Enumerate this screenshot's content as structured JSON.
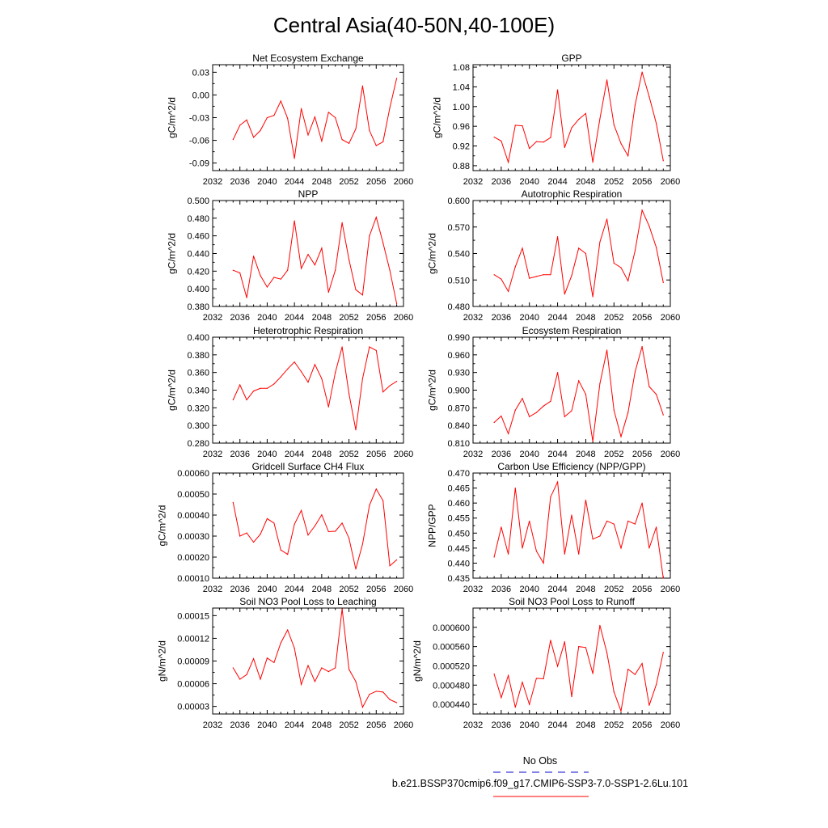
{
  "figure": {
    "title": "Central Asia(40-50N,40-100E)",
    "line_color": "#ff0000",
    "obs_color": "#3b3bd6"
  },
  "legend": {
    "obs_label": "No Obs",
    "run_label": "b.e21.BSSP370cmip6.f09_g17.CMIP6-SSP3-7.0-SSP1-2.6Lu.101"
  },
  "chart_data": [
    {
      "type": "line",
      "title": "Net Ecosystem Exchange",
      "ylabel": "gC/m^2/d",
      "xlim": [
        2032,
        2060
      ],
      "xticks": [
        2032,
        2036,
        2040,
        2044,
        2048,
        2052,
        2056,
        2060
      ],
      "ylim": [
        -0.1,
        0.04
      ],
      "yticks": [
        -0.09,
        -0.06,
        -0.03,
        0.0,
        0.03
      ],
      "ytick_labels": [
        "-0.09",
        "-0.06",
        "-0.03",
        "0.00",
        "0.03"
      ],
      "x": [
        2035,
        2036,
        2037,
        2038,
        2039,
        2040,
        2041,
        2042,
        2043,
        2044,
        2045,
        2046,
        2047,
        2048,
        2049,
        2050,
        2051,
        2052,
        2053,
        2054,
        2055,
        2056,
        2057,
        2058,
        2059
      ],
      "values": [
        -0.059,
        -0.04,
        -0.033,
        -0.056,
        -0.047,
        -0.03,
        -0.027,
        -0.008,
        -0.031,
        -0.084,
        -0.018,
        -0.053,
        -0.029,
        -0.061,
        -0.023,
        -0.03,
        -0.059,
        -0.064,
        -0.045,
        0.012,
        -0.047,
        -0.067,
        -0.062,
        -0.017,
        0.022
      ]
    },
    {
      "type": "line",
      "title": "GPP",
      "ylabel": "gC/m^2/d",
      "xlim": [
        2032,
        2060
      ],
      "xticks": [
        2032,
        2036,
        2040,
        2044,
        2048,
        2052,
        2056,
        2060
      ],
      "ylim": [
        0.87,
        1.085
      ],
      "yticks": [
        0.88,
        0.92,
        0.96,
        1.0,
        1.04,
        1.08
      ],
      "ytick_labels": [
        "0.88",
        "0.92",
        "0.96",
        "1.00",
        "1.04",
        "1.08"
      ],
      "x": [
        2035,
        2036,
        2037,
        2038,
        2039,
        2040,
        2041,
        2042,
        2043,
        2044,
        2045,
        2046,
        2047,
        2048,
        2049,
        2050,
        2051,
        2052,
        2053,
        2054,
        2055,
        2056,
        2057,
        2058,
        2059
      ],
      "values": [
        0.938,
        0.93,
        0.887,
        0.962,
        0.961,
        0.915,
        0.929,
        0.928,
        0.937,
        1.034,
        0.917,
        0.957,
        0.974,
        0.986,
        0.887,
        0.975,
        1.054,
        0.963,
        0.925,
        0.9,
        1.003,
        1.07,
        1.02,
        0.966,
        0.89
      ]
    },
    {
      "type": "line",
      "title": "NPP",
      "ylabel": "gC/m^2/d",
      "xlim": [
        2032,
        2060
      ],
      "xticks": [
        2032,
        2036,
        2040,
        2044,
        2048,
        2052,
        2056,
        2060
      ],
      "ylim": [
        0.38,
        0.5
      ],
      "yticks": [
        0.38,
        0.4,
        0.42,
        0.44,
        0.46,
        0.48,
        0.5
      ],
      "ytick_labels": [
        "0.380",
        "0.400",
        "0.420",
        "0.440",
        "0.460",
        "0.480",
        "0.500"
      ],
      "x": [
        2035,
        2036,
        2037,
        2038,
        2039,
        2040,
        2041,
        2042,
        2043,
        2044,
        2045,
        2046,
        2047,
        2048,
        2049,
        2050,
        2051,
        2052,
        2053,
        2054,
        2055,
        2056,
        2057,
        2058,
        2059
      ],
      "values": [
        0.421,
        0.418,
        0.39,
        0.437,
        0.415,
        0.402,
        0.413,
        0.411,
        0.421,
        0.477,
        0.423,
        0.439,
        0.427,
        0.446,
        0.396,
        0.421,
        0.475,
        0.433,
        0.399,
        0.393,
        0.46,
        0.481,
        0.452,
        0.421,
        0.383
      ]
    },
    {
      "type": "line",
      "title": "Autotrophic Respiration",
      "ylabel": "gC/m^2/d",
      "xlim": [
        2032,
        2060
      ],
      "xticks": [
        2032,
        2036,
        2040,
        2044,
        2048,
        2052,
        2056,
        2060
      ],
      "ylim": [
        0.48,
        0.6
      ],
      "yticks": [
        0.48,
        0.51,
        0.54,
        0.57,
        0.6
      ],
      "ytick_labels": [
        "0.480",
        "0.510",
        "0.540",
        "0.570",
        "0.600"
      ],
      "x": [
        2035,
        2036,
        2037,
        2038,
        2039,
        2040,
        2041,
        2042,
        2043,
        2044,
        2045,
        2046,
        2047,
        2048,
        2049,
        2050,
        2051,
        2052,
        2053,
        2054,
        2055,
        2056,
        2057,
        2058,
        2059
      ],
      "values": [
        0.516,
        0.511,
        0.497,
        0.525,
        0.546,
        0.512,
        0.514,
        0.516,
        0.516,
        0.559,
        0.494,
        0.515,
        0.546,
        0.54,
        0.491,
        0.553,
        0.579,
        0.529,
        0.524,
        0.509,
        0.543,
        0.589,
        0.571,
        0.547,
        0.507
      ]
    },
    {
      "type": "line",
      "title": "Heterotrophic Respiration",
      "ylabel": "gC/m^2/d",
      "xlim": [
        2032,
        2060
      ],
      "xticks": [
        2032,
        2036,
        2040,
        2044,
        2048,
        2052,
        2056,
        2060
      ],
      "ylim": [
        0.28,
        0.4
      ],
      "yticks": [
        0.28,
        0.3,
        0.32,
        0.34,
        0.36,
        0.38,
        0.4
      ],
      "ytick_labels": [
        "0.280",
        "0.300",
        "0.320",
        "0.340",
        "0.360",
        "0.380",
        "0.400"
      ],
      "x": [
        2035,
        2036,
        2037,
        2038,
        2039,
        2040,
        2041,
        2042,
        2043,
        2044,
        2045,
        2046,
        2047,
        2048,
        2049,
        2050,
        2051,
        2052,
        2053,
        2054,
        2055,
        2056,
        2057,
        2058,
        2059
      ],
      "values": [
        0.329,
        0.346,
        0.329,
        0.339,
        0.342,
        0.342,
        0.347,
        0.355,
        0.364,
        0.372,
        0.361,
        0.349,
        0.369,
        0.353,
        0.321,
        0.36,
        0.389,
        0.336,
        0.295,
        0.353,
        0.389,
        0.385,
        0.338,
        0.345,
        0.35
      ]
    },
    {
      "type": "line",
      "title": "Ecosystem Respiration",
      "ylabel": "gC/m^2/d",
      "xlim": [
        2032,
        2060
      ],
      "xticks": [
        2032,
        2036,
        2040,
        2044,
        2048,
        2052,
        2056,
        2060
      ],
      "ylim": [
        0.81,
        0.99
      ],
      "yticks": [
        0.81,
        0.84,
        0.87,
        0.9,
        0.93,
        0.96,
        0.99
      ],
      "ytick_labels": [
        "0.810",
        "0.840",
        "0.870",
        "0.900",
        "0.930",
        "0.960",
        "0.990"
      ],
      "x": [
        2035,
        2036,
        2037,
        2038,
        2039,
        2040,
        2041,
        2042,
        2043,
        2044,
        2045,
        2046,
        2047,
        2048,
        2049,
        2050,
        2051,
        2052,
        2053,
        2054,
        2055,
        2056,
        2057,
        2058,
        2059
      ],
      "values": [
        0.845,
        0.856,
        0.826,
        0.866,
        0.886,
        0.855,
        0.862,
        0.873,
        0.881,
        0.93,
        0.855,
        0.865,
        0.916,
        0.893,
        0.813,
        0.911,
        0.968,
        0.866,
        0.821,
        0.862,
        0.931,
        0.974,
        0.906,
        0.893,
        0.858
      ]
    },
    {
      "type": "line",
      "title": "Gridcell Surface CH4 Flux",
      "ylabel": "gC/m^2/d",
      "xlim": [
        2032,
        2060
      ],
      "xticks": [
        2032,
        2036,
        2040,
        2044,
        2048,
        2052,
        2056,
        2060
      ],
      "ylim": [
        0.0001,
        0.0006
      ],
      "yticks": [
        0.0001,
        0.0002,
        0.0003,
        0.0004,
        0.0005,
        0.0006
      ],
      "ytick_labels": [
        "0.00010",
        "0.00020",
        "0.00030",
        "0.00040",
        "0.00050",
        "0.00060"
      ],
      "x": [
        2035,
        2036,
        2037,
        2038,
        2039,
        2040,
        2041,
        2042,
        2043,
        2044,
        2045,
        2046,
        2047,
        2048,
        2049,
        2050,
        2051,
        2052,
        2053,
        2054,
        2055,
        2056,
        2057,
        2058,
        2059
      ],
      "values": [
        0.00046,
        0.0003,
        0.000315,
        0.000271,
        0.000309,
        0.000383,
        0.000362,
        0.000234,
        0.000213,
        0.000356,
        0.000422,
        0.000305,
        0.000348,
        0.000401,
        0.000321,
        0.000323,
        0.000362,
        0.00029,
        0.000143,
        0.000262,
        0.000446,
        0.000524,
        0.000468,
        0.000159,
        0.000187
      ]
    },
    {
      "type": "line",
      "title": "Carbon Use Efficiency (NPP/GPP)",
      "ylabel": "NPP/GPP",
      "xlim": [
        2032,
        2060
      ],
      "xticks": [
        2032,
        2036,
        2040,
        2044,
        2048,
        2052,
        2056,
        2060
      ],
      "ylim": [
        0.435,
        0.47
      ],
      "yticks": [
        0.435,
        0.44,
        0.445,
        0.45,
        0.455,
        0.46,
        0.465,
        0.47
      ],
      "ytick_labels": [
        "0.435",
        "0.440",
        "0.445",
        "0.450",
        "0.455",
        "0.460",
        "0.465",
        "0.470"
      ],
      "x": [
        2035,
        2036,
        2037,
        2038,
        2039,
        2040,
        2041,
        2042,
        2043,
        2044,
        2045,
        2046,
        2047,
        2048,
        2049,
        2050,
        2051,
        2052,
        2053,
        2054,
        2055,
        2056,
        2057,
        2058,
        2059
      ],
      "values": [
        0.442,
        0.452,
        0.443,
        0.465,
        0.445,
        0.454,
        0.444,
        0.44,
        0.462,
        0.467,
        0.443,
        0.456,
        0.443,
        0.461,
        0.448,
        0.449,
        0.454,
        0.453,
        0.445,
        0.454,
        0.453,
        0.46,
        0.445,
        0.452,
        0.435
      ]
    },
    {
      "type": "line",
      "title": "Soil NO3 Pool Loss to Leaching",
      "ylabel": "gN/m^2/d",
      "xlim": [
        2032,
        2060
      ],
      "xticks": [
        2032,
        2036,
        2040,
        2044,
        2048,
        2052,
        2056,
        2060
      ],
      "ylim": [
        2e-05,
        0.00016
      ],
      "yticks": [
        3e-05,
        6e-05,
        9e-05,
        0.00012,
        0.00015
      ],
      "ytick_labels": [
        "0.00003",
        "0.00006",
        "0.00009",
        "0.00012",
        "0.00015"
      ],
      "x": [
        2035,
        2036,
        2037,
        2038,
        2039,
        2040,
        2041,
        2042,
        2043,
        2044,
        2045,
        2046,
        2047,
        2048,
        2049,
        2050,
        2051,
        2052,
        2053,
        2054,
        2055,
        2056,
        2057,
        2058,
        2059
      ],
      "values": [
        8.1e-05,
        6.6e-05,
        7.2e-05,
        9.3e-05,
        6.6e-05,
        9.4e-05,
        8.8e-05,
        0.000114,
        0.000131,
        0.000107,
        5.9e-05,
        8.4e-05,
        6.3e-05,
        8.1e-05,
        7.6e-05,
        8.1e-05,
        0.000159,
        7.9e-05,
        6.3e-05,
        2.9e-05,
        4.6e-05,
        5e-05,
        4.9e-05,
        3.9e-05,
        3.5e-05
      ]
    },
    {
      "type": "line",
      "title": "Soil NO3 Pool Loss to Runoff",
      "ylabel": "gN/m^2/d",
      "xlim": [
        2032,
        2060
      ],
      "xticks": [
        2032,
        2036,
        2040,
        2044,
        2048,
        2052,
        2056,
        2060
      ],
      "ylim": [
        0.00042,
        0.00064
      ],
      "yticks": [
        0.00044,
        0.00048,
        0.00052,
        0.00056,
        0.0006
      ],
      "ytick_labels": [
        "0.000440",
        "0.000480",
        "0.000520",
        "0.000560",
        "0.000600"
      ],
      "x": [
        2035,
        2036,
        2037,
        2038,
        2039,
        2040,
        2041,
        2042,
        2043,
        2044,
        2045,
        2046,
        2047,
        2048,
        2049,
        2050,
        2051,
        2052,
        2053,
        2054,
        2055,
        2056,
        2057,
        2058,
        2059
      ],
      "values": [
        0.000503,
        0.000454,
        0.0005,
        0.000434,
        0.000486,
        0.00044,
        0.000494,
        0.000493,
        0.000573,
        0.000519,
        0.00057,
        0.000456,
        0.00056,
        0.000558,
        0.000504,
        0.000604,
        0.000547,
        0.000466,
        0.000426,
        0.000513,
        0.000502,
        0.000525,
        0.000438,
        0.000481,
        0.000548
      ]
    }
  ]
}
